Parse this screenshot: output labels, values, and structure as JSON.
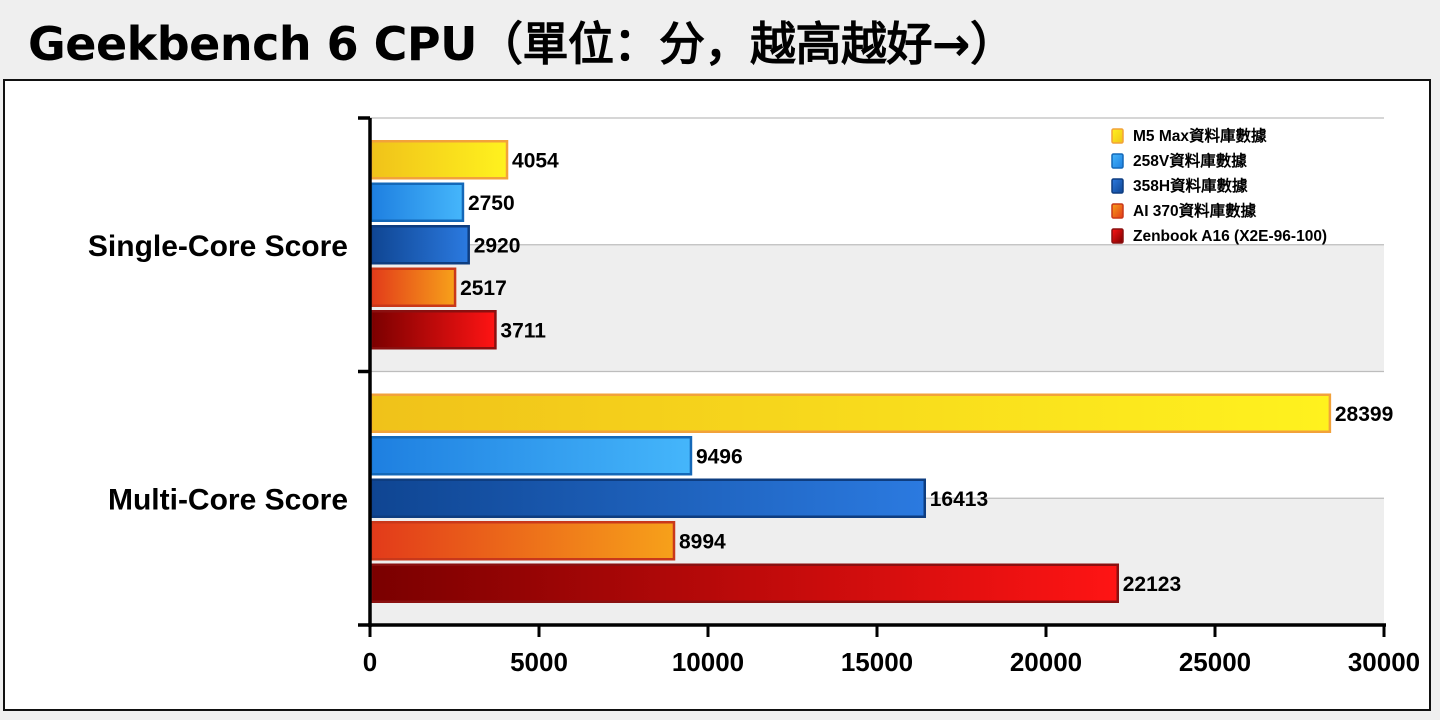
{
  "title": "Geekbench 6 CPU（單位：分，越高越好→）",
  "chart_data": {
    "type": "bar",
    "orientation": "horizontal",
    "categories": [
      "Single-Core Score",
      "Multi-Core Score"
    ],
    "series": [
      {
        "name": "M5 Max資料庫數據",
        "values": [
          4054,
          28399
        ],
        "color": "#f7d51c"
      },
      {
        "name": "258V資料庫數據",
        "values": [
          2750,
          9496
        ],
        "color": "#2c9ef0"
      },
      {
        "name": "358H資料庫數據",
        "values": [
          2920,
          16413
        ],
        "color": "#1c5fb8"
      },
      {
        "name": "AI 370資料庫數據",
        "values": [
          2517,
          8994
        ],
        "color": "#f06a1a"
      },
      {
        "name": "Zenbook A16 (X2E-96-100)",
        "values": [
          3711,
          22123
        ],
        "color": "#d41414"
      }
    ],
    "xlim": [
      0,
      30000
    ],
    "xticks": [
      "0",
      "5000",
      "10000",
      "15000",
      "20000",
      "25000",
      "30000"
    ],
    "grid": true,
    "legend_position": "top-right"
  }
}
